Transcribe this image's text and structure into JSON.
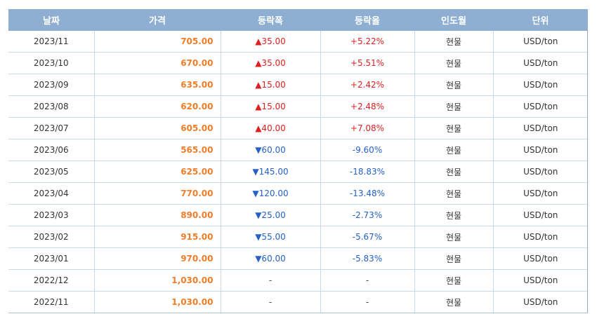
{
  "table": {
    "headers": [
      "날짜",
      "가격",
      "등락폭",
      "등락율",
      "인도월",
      "단위"
    ],
    "rows": [
      {
        "date": "2023/11",
        "price": "705.00",
        "change": "▲35.00",
        "rate": "+5.22%",
        "delivery": "현물",
        "unit": "USD/ton",
        "dir": "up"
      },
      {
        "date": "2023/10",
        "price": "670.00",
        "change": "▲35.00",
        "rate": "+5.51%",
        "delivery": "현물",
        "unit": "USD/ton",
        "dir": "up"
      },
      {
        "date": "2023/09",
        "price": "635.00",
        "change": "▲15.00",
        "rate": "+2.42%",
        "delivery": "현물",
        "unit": "USD/ton",
        "dir": "up"
      },
      {
        "date": "2023/08",
        "price": "620.00",
        "change": "▲15.00",
        "rate": "+2.48%",
        "delivery": "현물",
        "unit": "USD/ton",
        "dir": "up"
      },
      {
        "date": "2023/07",
        "price": "605.00",
        "change": "▲40.00",
        "rate": "+7.08%",
        "delivery": "현물",
        "unit": "USD/ton",
        "dir": "up"
      },
      {
        "date": "2023/06",
        "price": "565.00",
        "change": "▼60.00",
        "rate": "-9.60%",
        "delivery": "현물",
        "unit": "USD/ton",
        "dir": "down"
      },
      {
        "date": "2023/05",
        "price": "625.00",
        "change": "▼145.00",
        "rate": "-18.83%",
        "delivery": "현물",
        "unit": "USD/ton",
        "dir": "down"
      },
      {
        "date": "2023/04",
        "price": "770.00",
        "change": "▼120.00",
        "rate": "-13.48%",
        "delivery": "현물",
        "unit": "USD/ton",
        "dir": "down"
      },
      {
        "date": "2023/03",
        "price": "890.00",
        "change": "▼25.00",
        "rate": "-2.73%",
        "delivery": "현물",
        "unit": "USD/ton",
        "dir": "down"
      },
      {
        "date": "2023/02",
        "price": "915.00",
        "change": "▼55.00",
        "rate": "-5.67%",
        "delivery": "현물",
        "unit": "USD/ton",
        "dir": "down"
      },
      {
        "date": "2023/01",
        "price": "970.00",
        "change": "▼60.00",
        "rate": "-5.83%",
        "delivery": "현물",
        "unit": "USD/ton",
        "dir": "down"
      },
      {
        "date": "2022/12",
        "price": "1,030.00",
        "change": "-",
        "rate": "-",
        "delivery": "현물",
        "unit": "USD/ton",
        "dir": "flat"
      },
      {
        "date": "2022/11",
        "price": "1,030.00",
        "change": "-",
        "rate": "-",
        "delivery": "현물",
        "unit": "USD/ton",
        "dir": "flat"
      }
    ]
  },
  "colors": {
    "header_bg": "#8eafd2",
    "price": "#f07d28",
    "up": "#e02020",
    "down": "#2561c8",
    "border": "#c9d8ea"
  }
}
